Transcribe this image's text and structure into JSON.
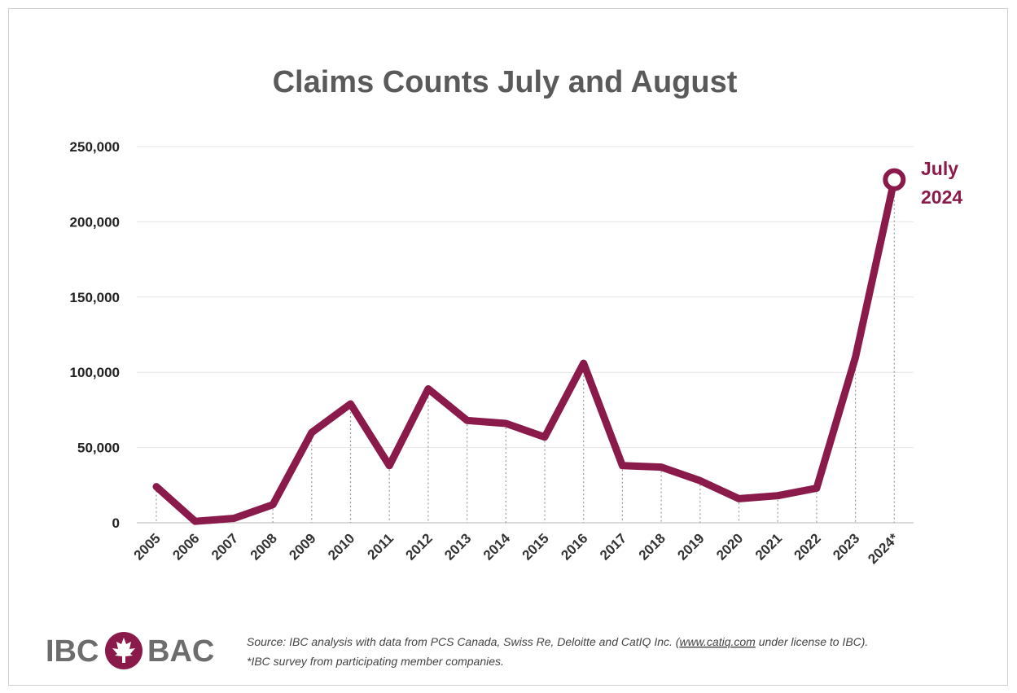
{
  "chart_data": {
    "type": "line",
    "title": "Claims Counts July and August",
    "xlabel": "",
    "ylabel": "",
    "ylim": [
      0,
      250000
    ],
    "yticks": [
      0,
      50000,
      100000,
      150000,
      200000,
      250000
    ],
    "ytick_labels": [
      "0",
      "50,000",
      "100,000",
      "150,000",
      "200,000",
      "250,000"
    ],
    "categories": [
      "2005",
      "2006",
      "2007",
      "2008",
      "2009",
      "2010",
      "2011",
      "2012",
      "2013",
      "2014",
      "2015",
      "2016",
      "2017",
      "2018",
      "2019",
      "2020",
      "2021",
      "2022",
      "2023",
      "2024*"
    ],
    "series": [
      {
        "values": [
          24000,
          1000,
          3000,
          12000,
          60000,
          79000,
          38000,
          89000,
          68000,
          66000,
          57000,
          106000,
          38000,
          37000,
          28000,
          16000,
          18000,
          23000,
          110000,
          228000
        ]
      }
    ],
    "grid": true,
    "line_color": "#8a1a4a",
    "annotation": {
      "lines": [
        "July",
        "2024"
      ]
    }
  },
  "footer": {
    "logo_left": "IBC",
    "logo_right": "BAC",
    "source_line1_before": "Source: IBC analysis with data from PCS Canada, Swiss Re, Deloitte and CatIQ Inc. (",
    "source_link": "www.catiq.com",
    "source_line1_after": " under license to IBC).",
    "source_line2": "*IBC survey from participating member companies."
  }
}
